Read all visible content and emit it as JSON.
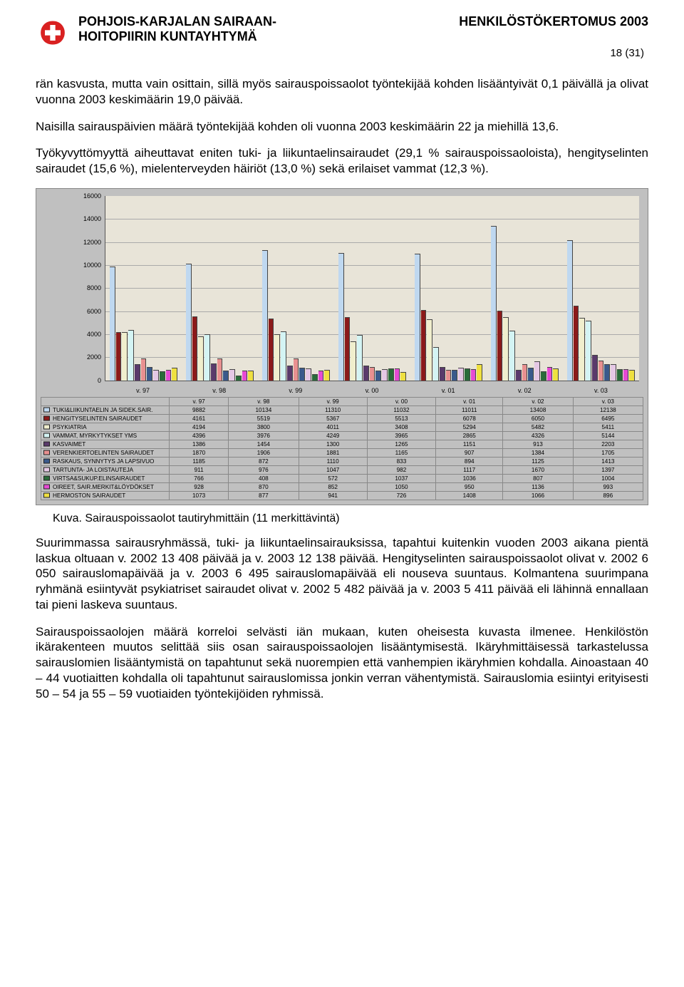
{
  "header": {
    "org_line1": "POHJOIS-KARJALAN SAIRAAN-",
    "org_line2": "HOITOPIIRIN KUNTAYHTYMÄ",
    "report_title": "HENKILÖSTÖKERTOMUS 2003",
    "page_num": "18 (31)",
    "logo_color_red": "#d92121",
    "logo_color_white": "#ffffff"
  },
  "paragraphs": {
    "p1": "rän kasvusta, mutta vain osittain, sillä myös sairauspoissaolot työntekijää kohden lisääntyivät 0,1 päivällä ja olivat vuonna 2003 keskimäärin 19,0 päivää.",
    "p2": "Naisilla sairauspäivien määrä työntekijää kohden oli vuonna 2003 keskimäärin 22 ja miehillä 13,6.",
    "p3": "Työkyvyttömyyttä aiheuttavat eniten tuki- ja liikuntaelinsairaudet (29,1 % sairauspoissaoloista), hengityselinten sairaudet (15,6 %), mielenterveyden häiriöt (13,0 %) sekä erilaiset vammat (12,3 %).",
    "caption": "Kuva.  Sairauspoissaolot tautiryhmittäin (11 merkittävintä)",
    "p4": "Suurimmassa  sairausryhmässä,  tuki- ja liikuntaelinsairauksissa, tapahtui kuitenkin vuoden 2003 aikana  pientä laskua oltuaan v. 2002 13 408 päivää ja v. 2003 12 138 päivää. Hengityselinten sairauspoissaolot olivat v. 2002 6 050 sairauslomapäivää ja v. 2003 6 495 sairauslomapäivää eli nouseva suuntaus. Kolmantena suurimpana ryhmänä esiintyvät psykiatriset sairaudet olivat v. 2002 5 482 päivää ja v. 2003 5 411 päivää eli lähinnä ennallaan tai pieni laskeva suuntaus.",
    "p5": "Sairauspoissaolojen määrä korreloi selvästi iän mukaan, kuten oheisesta kuvasta ilmenee.  Henkilöstön ikärakenteen muutos selittää siis  osan sairauspoissaolojen lisääntymisestä. Ikäryhmittäisessä tarkastelussa sairauslomien lisääntymistä on tapahtunut sekä nuorempien että vanhempien ikäryhmien kohdalla. Ainoastaan 40 – 44 vuotiaitten kohdalla oli tapahtunut sairauslomissa jonkin verran vähentymistä. Sairauslomia esiintyi erityisesti 50 – 54 ja 55 – 59 vuotiaiden työntekijöiden ryhmissä."
  },
  "chart": {
    "type": "bar",
    "ymax": 16000,
    "ytick_step": 2000,
    "background_color": "#e8e4d8",
    "container_bg": "#c0c0c0",
    "grid_color": "#aaaaaa",
    "categories": [
      "v. 97",
      "v. 98",
      "v. 99",
      "v. 00",
      "v. 01",
      "v. 02",
      "v. 03"
    ],
    "series": [
      {
        "label": "TUKI&LIIKUNTAELIN JA SIDEK.SAIR.",
        "color": "#bfd8f0",
        "values": [
          9882,
          10134,
          11310,
          11032,
          11011,
          13408,
          12138
        ]
      },
      {
        "label": "HENGITYSELINTEN SAIRAUDET",
        "color": "#8b1a1a",
        "values": [
          4161,
          5519,
          5367,
          5513,
          6078,
          6050,
          6495
        ]
      },
      {
        "label": "PSYKIATRIA",
        "color": "#f0eecd",
        "values": [
          4194,
          3800,
          4011,
          3408,
          5294,
          5482,
          5411
        ]
      },
      {
        "label": "VAMMAT, MYRKYTYKSET YMS",
        "color": "#d4f4f4",
        "values": [
          4396,
          3976,
          4249,
          3965,
          2865,
          4326,
          5144
        ]
      },
      {
        "label": "KASVAIMET",
        "color": "#5a3a6b",
        "values": [
          1386,
          1454,
          1300,
          1265,
          1151,
          913,
          2203
        ]
      },
      {
        "label": "VERENKIERTOELINTEN SAIRAUDET",
        "color": "#e89090",
        "values": [
          1870,
          1906,
          1881,
          1165,
          907,
          1384,
          1705
        ]
      },
      {
        "label": "RASKAUS, SYNNYTYS JA LAPSIVUO",
        "color": "#3a5a8b",
        "values": [
          1185,
          872,
          1110,
          833,
          894,
          1125,
          1413
        ]
      },
      {
        "label": "TARTUNTA- JA LOISTAUTEJA",
        "color": "#e5c8e5",
        "values": [
          911,
          976,
          1047,
          982,
          1117,
          1670,
          1397
        ]
      },
      {
        "label": "VIRTSA&SUKUP.ELINSAIRAUDET",
        "color": "#2a6b3a",
        "values": [
          766,
          408,
          572,
          1037,
          1036,
          807,
          1004
        ]
      },
      {
        "label": "OIREET, SAIR.MERKIT&LÖYDÖKSET",
        "color": "#e64ad4",
        "values": [
          928,
          870,
          852,
          1050,
          950,
          1136,
          993
        ]
      },
      {
        "label": "HERMOSTON SAIRAUDET",
        "color": "#efe040",
        "values": [
          1073,
          877,
          941,
          726,
          1408,
          1066,
          896
        ]
      }
    ]
  }
}
